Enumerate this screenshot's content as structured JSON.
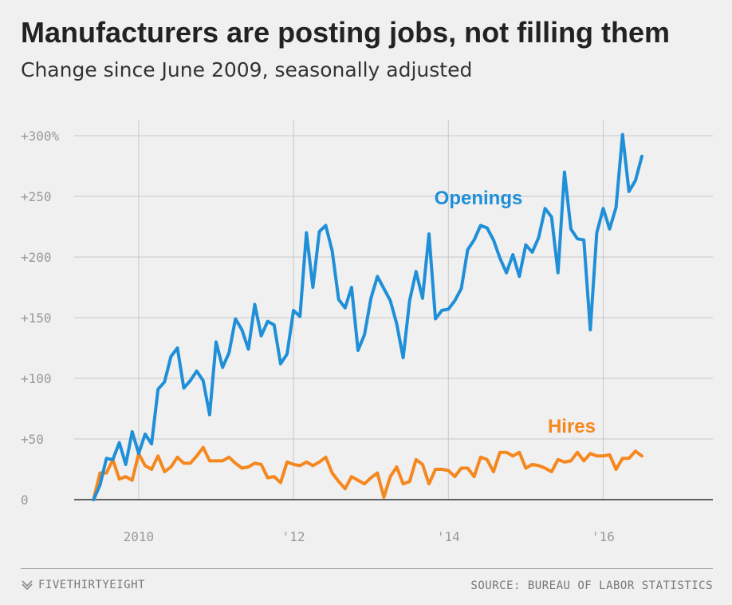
{
  "title": "Manufacturers are posting jobs, not filling them",
  "subtitle": "Change since June 2009, seasonally adjusted",
  "footer": {
    "brand": "FIVETHIRTYEIGHT",
    "source": "SOURCE: BUREAU OF LABOR STATISTICS"
  },
  "chart_data": {
    "type": "line",
    "x_start": "2009-06",
    "x_interval": "month",
    "xlim": [
      "2009-03",
      "2017-06"
    ],
    "ylim": [
      -10,
      305
    ],
    "y_ticks": [
      0,
      50,
      100,
      150,
      200,
      250,
      300
    ],
    "y_tick_labels": [
      "0",
      "+50",
      "+100",
      "+150",
      "+200",
      "+250",
      "+300%"
    ],
    "x_ticks": [
      "2010-01",
      "2012-01",
      "2014-01",
      "2016-01"
    ],
    "x_tick_labels": [
      "2010",
      "'12",
      "'14",
      "'16"
    ],
    "grid": true,
    "series": [
      {
        "name": "Openings",
        "color": "#1f8fd8",
        "values": [
          0,
          12,
          34,
          33,
          47,
          29,
          56,
          38,
          54,
          46,
          91,
          97,
          118,
          125,
          92,
          98,
          106,
          98,
          70,
          130,
          109,
          121,
          149,
          140,
          124,
          161,
          135,
          147,
          144,
          112,
          120,
          156,
          151,
          220,
          175,
          221,
          226,
          205,
          165,
          158,
          175,
          123,
          136,
          166,
          184,
          174,
          164,
          145,
          117,
          164,
          188,
          166,
          219,
          149,
          156,
          157,
          164,
          174,
          206,
          214,
          226,
          224,
          214,
          199,
          187,
          202,
          184,
          210,
          204,
          216,
          240,
          233,
          187,
          270,
          223,
          215,
          214,
          140,
          220,
          240,
          223,
          241,
          301,
          254,
          263,
          283
        ]
      },
      {
        "name": "Hires",
        "color": "#f5871f",
        "values": [
          0,
          22,
          22,
          33,
          17,
          19,
          16,
          38,
          28,
          25,
          36,
          23,
          27,
          35,
          30,
          30,
          36,
          43,
          32,
          32,
          32,
          35,
          30,
          26,
          27,
          30,
          29,
          18,
          19,
          14,
          31,
          29,
          28,
          31,
          28,
          31,
          35,
          22,
          15,
          9,
          19,
          16,
          13,
          18,
          22,
          2,
          19,
          27,
          13,
          15,
          33,
          29,
          13,
          25,
          25,
          24,
          19,
          26,
          26,
          19,
          35,
          33,
          23,
          39,
          39,
          36,
          39,
          26,
          29,
          28,
          26,
          23,
          33,
          31,
          32,
          39,
          32,
          38,
          36,
          36,
          37,
          25,
          34,
          34,
          40,
          36
        ]
      }
    ]
  }
}
